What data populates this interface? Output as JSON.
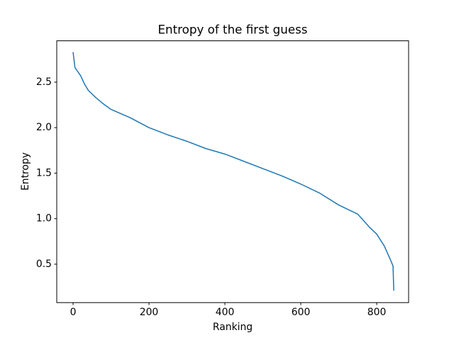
{
  "chart_data": {
    "type": "line",
    "title": "Entropy of the first guess",
    "x_label": "Ranking",
    "y_label": "Entropy",
    "series": [
      {
        "color": "#1f77b4",
        "x": [
          0,
          5,
          20,
          30,
          40,
          60,
          80,
          100,
          150,
          200,
          250,
          300,
          350,
          400,
          450,
          500,
          550,
          600,
          650,
          700,
          750,
          780,
          800,
          820,
          835,
          843,
          845
        ],
        "values": [
          2.83,
          2.66,
          2.57,
          2.48,
          2.41,
          2.33,
          2.26,
          2.2,
          2.11,
          2.0,
          1.92,
          1.85,
          1.77,
          1.71,
          1.63,
          1.55,
          1.47,
          1.38,
          1.28,
          1.15,
          1.05,
          0.91,
          0.83,
          0.7,
          0.56,
          0.48,
          0.21
        ]
      }
    ],
    "xlim": [
      -43,
      884
    ],
    "ylim": [
      0.078,
      2.954
    ],
    "xticks": [
      0,
      200,
      400,
      600,
      800
    ],
    "yticks": [
      0.5,
      {
        "value": 1.0,
        "label": "1.0"
      },
      1.5,
      {
        "value": 2.0,
        "label": "2.0"
      },
      2.5
    ]
  }
}
